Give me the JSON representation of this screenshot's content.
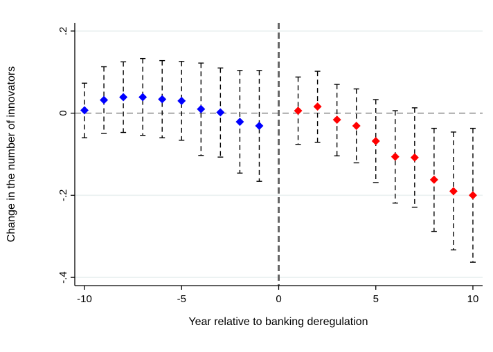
{
  "chart_data": {
    "type": "scatter",
    "xlabel": "Year relative to banking deregulation",
    "ylabel": "Change in the number of innovators",
    "xlim": [
      -10.5,
      10.5
    ],
    "ylim": [
      -0.42,
      0.22
    ],
    "x_ticks": [
      -10,
      -5,
      0,
      5,
      10
    ],
    "x_tick_labels": [
      "-10",
      "-5",
      "0",
      "5",
      "10"
    ],
    "y_ticks": [
      -0.4,
      -0.2,
      0,
      0.2
    ],
    "y_tick_labels": [
      "-.4",
      "-.2",
      "0",
      ".2"
    ],
    "grid": "horizontal",
    "reference_lines": {
      "y": 0,
      "x": 0
    },
    "colors": {
      "pre": "#0000ff",
      "post": "#ff0000",
      "grid": "#e8efef",
      "ref": "#888888"
    },
    "series": [
      {
        "color": "#0000ff",
        "x": [
          -10,
          -9,
          -8,
          -7,
          -6,
          -5,
          -4,
          -3,
          -2,
          -1
        ],
        "y": [
          0.007,
          0.032,
          0.039,
          0.039,
          0.034,
          0.03,
          0.01,
          0.002,
          -0.021,
          -0.031
        ],
        "lower": [
          -0.06,
          -0.049,
          -0.047,
          -0.054,
          -0.06,
          -0.066,
          -0.103,
          -0.107,
          -0.146,
          -0.166
        ],
        "upper": [
          0.073,
          0.113,
          0.125,
          0.133,
          0.128,
          0.126,
          0.122,
          0.11,
          0.104,
          0.104
        ]
      },
      {
        "color": "#ff0000",
        "x": [
          1,
          2,
          3,
          4,
          5,
          6,
          7,
          8,
          9,
          10
        ],
        "y": [
          0.006,
          0.016,
          -0.016,
          -0.031,
          -0.068,
          -0.106,
          -0.108,
          -0.162,
          -0.19,
          -0.2
        ],
        "lower": [
          -0.076,
          -0.071,
          -0.104,
          -0.121,
          -0.169,
          -0.219,
          -0.229,
          -0.288,
          -0.333,
          -0.363
        ],
        "upper": [
          0.088,
          0.102,
          0.07,
          0.059,
          0.033,
          0.006,
          0.013,
          -0.037,
          -0.046,
          -0.037
        ]
      }
    ]
  }
}
